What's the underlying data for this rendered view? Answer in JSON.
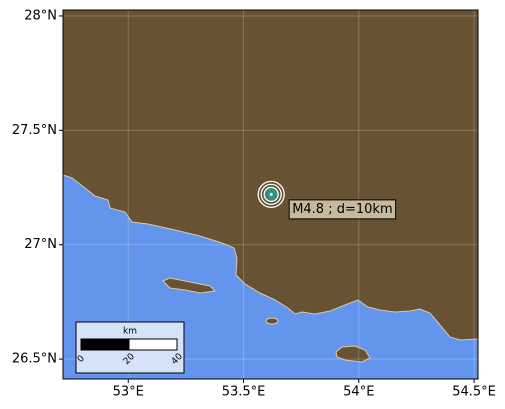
{
  "chart_data": {
    "type": "map",
    "xlim": [
      52.717,
      54.517
    ],
    "ylim": [
      26.413,
      28.026
    ],
    "xticks": [
      {
        "value": 53,
        "label": "53°E"
      },
      {
        "value": 53.5,
        "label": "53.5°E"
      },
      {
        "value": 54,
        "label": "54°E"
      },
      {
        "value": 54.5,
        "label": "54.5°E"
      }
    ],
    "yticks": [
      {
        "value": 26.5,
        "label": "26.5°N"
      },
      {
        "value": 27,
        "label": "27°N"
      },
      {
        "value": 27.5,
        "label": "27.5°N"
      },
      {
        "value": 28,
        "label": "28°N"
      }
    ],
    "grid": true,
    "x": [
      53.62
    ],
    "y": [
      27.22
    ],
    "annotations": [
      "M4.8 ; d=10km"
    ],
    "scale_bar": {
      "title": "km",
      "ticks": [
        0,
        20,
        40
      ]
    }
  }
}
